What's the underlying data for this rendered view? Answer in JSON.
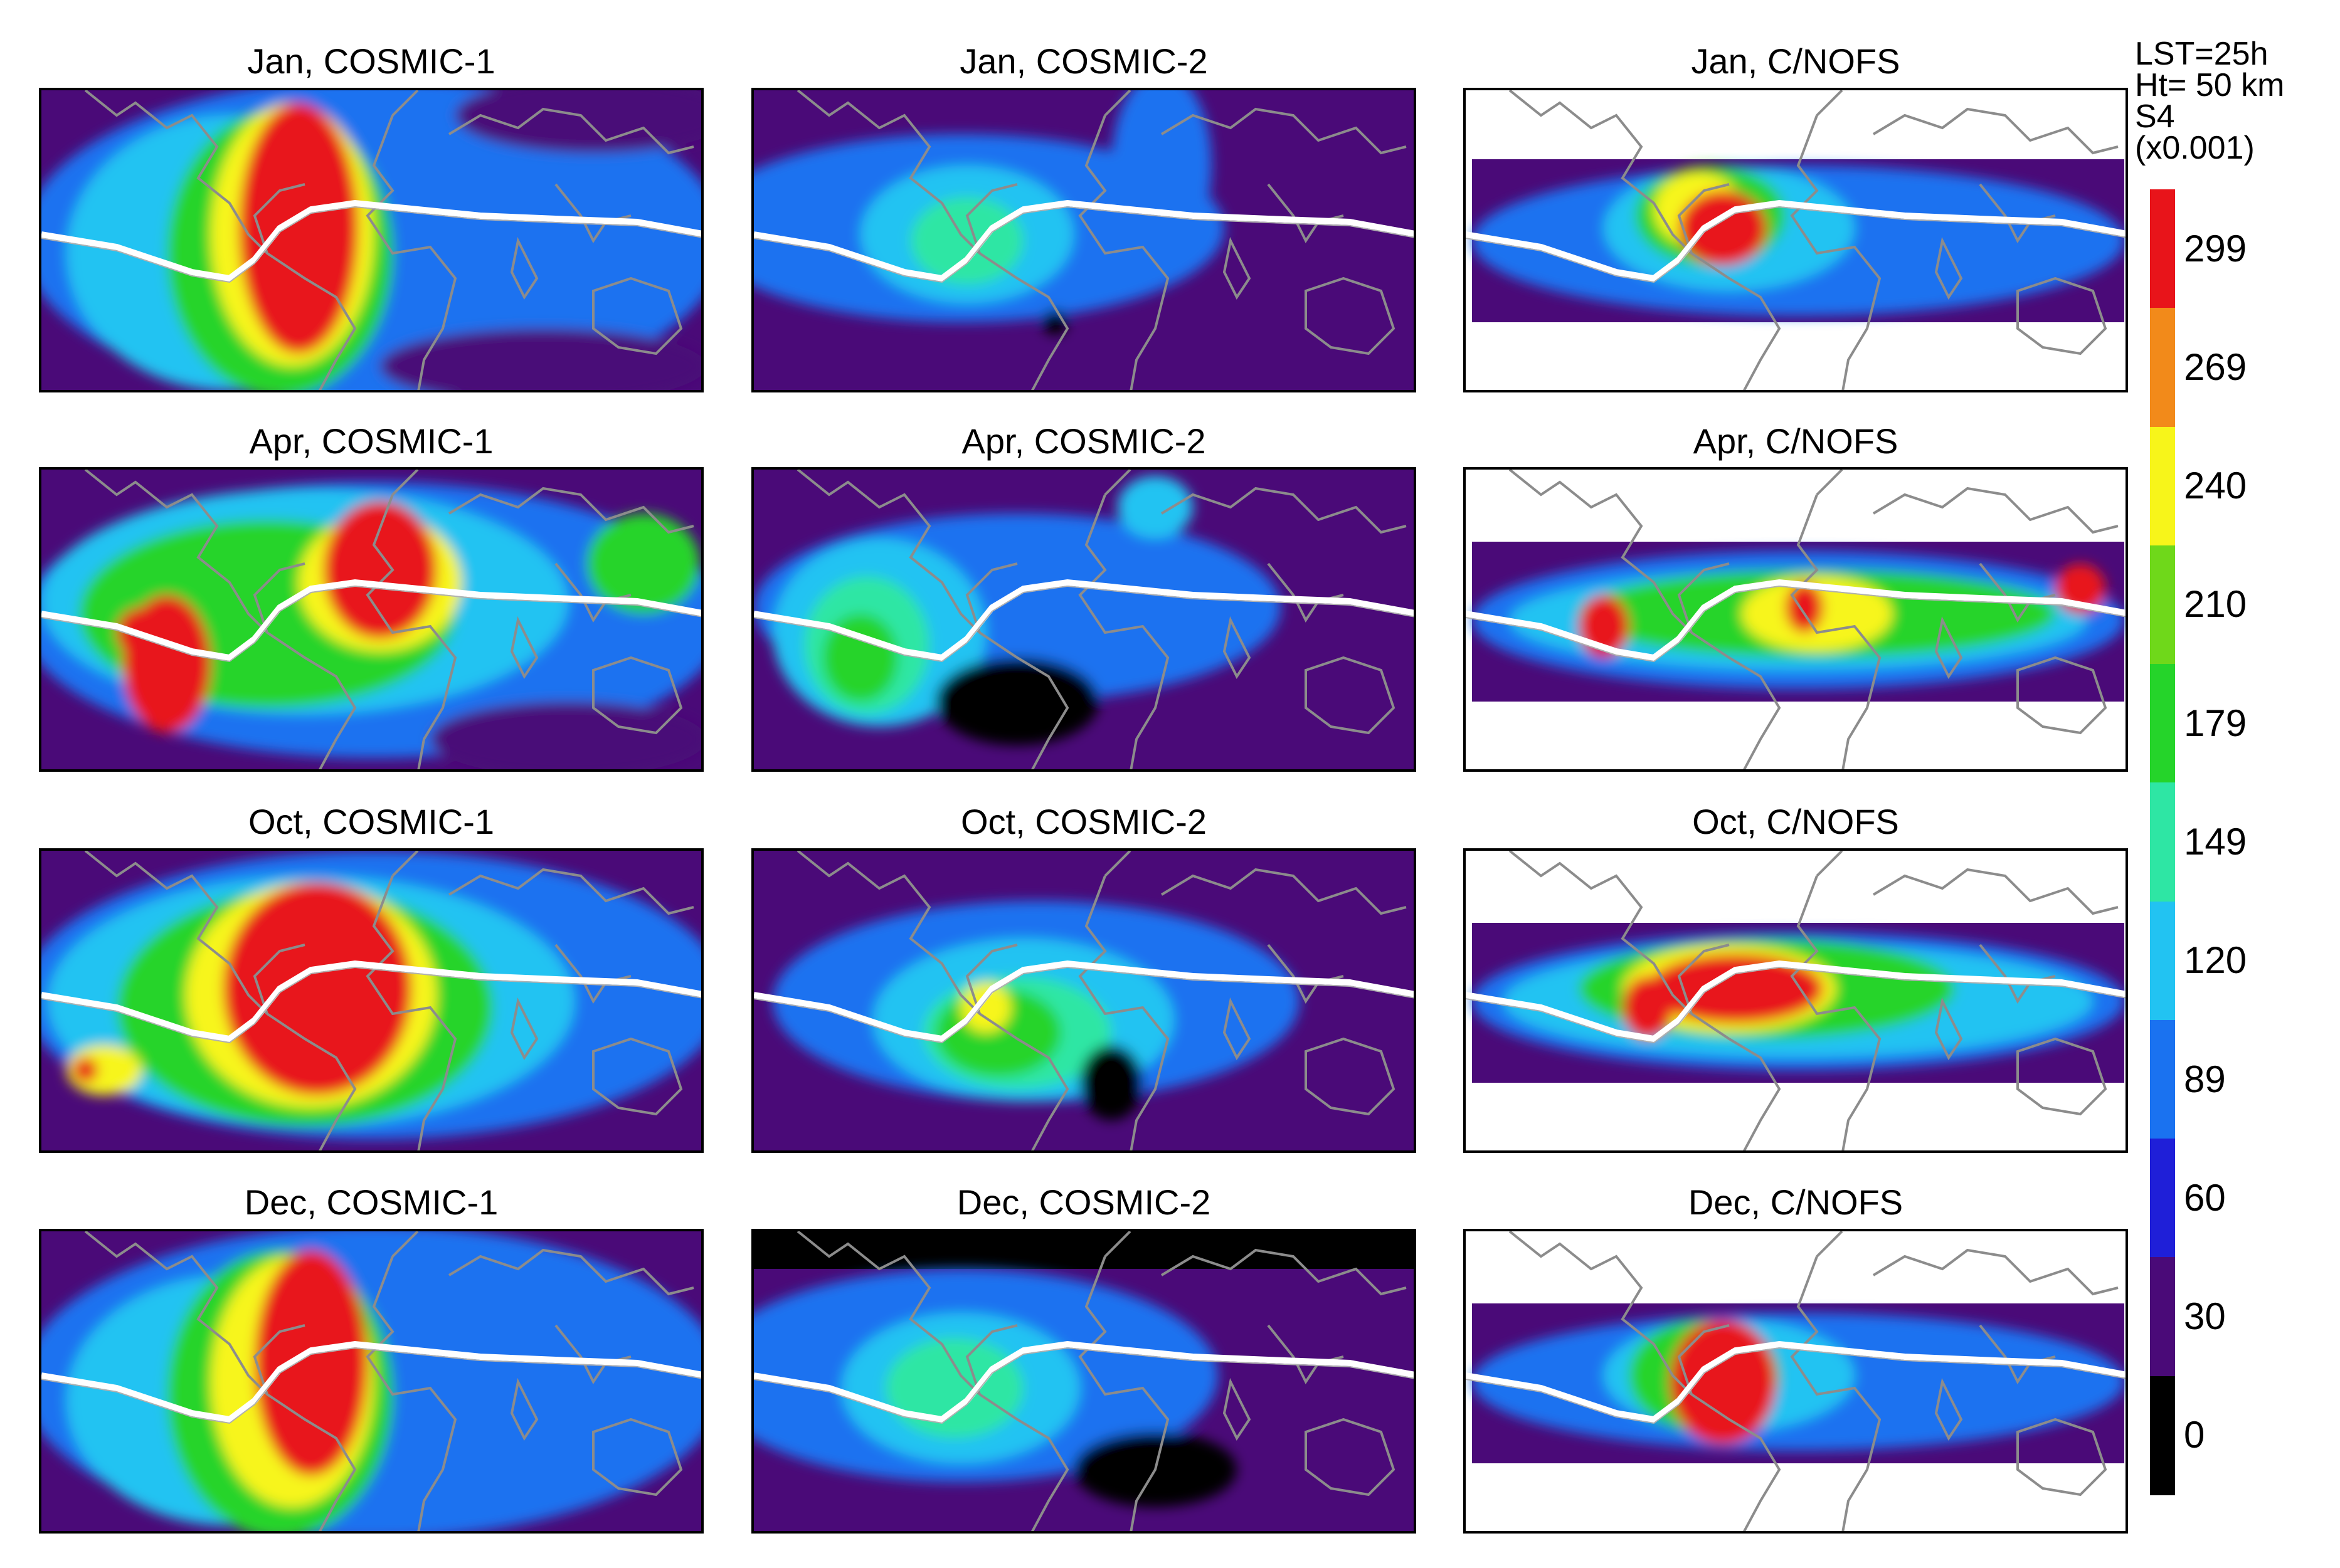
{
  "figure": {
    "rows": [
      "Jan",
      "Apr",
      "Oct",
      "Dec"
    ],
    "columns": [
      "COSMIC-1",
      "COSMIC-2",
      "C/NOFS"
    ],
    "panel_titles": [
      [
        "Jan, COSMIC-1",
        "Jan, COSMIC-2",
        "Jan, C/NOFS"
      ],
      [
        "Apr, COSMIC-1",
        "Apr, COSMIC-2",
        "Apr, C/NOFS"
      ],
      [
        "Oct, COSMIC-1",
        "Oct, COSMIC-2",
        "Oct, C/NOFS"
      ],
      [
        "Dec, COSMIC-1",
        "Dec, COSMIC-2",
        "Dec, C/NOFS"
      ]
    ]
  },
  "colorbar": {
    "header_lines": [
      "LST=25h",
      "Ht= 50 km",
      "S4",
      "(x0.001)"
    ],
    "tick_labels": [
      "299",
      "269",
      "240",
      "210",
      "179",
      "149",
      "120",
      "89",
      "60",
      "30",
      "0"
    ],
    "colors_top_to_bottom": [
      "#e8141a",
      "#f28a1a",
      "#f7f51a",
      "#6fd81a",
      "#25d42a",
      "#2ee6a4",
      "#22c3f2",
      "#1a72f0",
      "#1f1fd8",
      "#4a0a78",
      "#000000"
    ]
  },
  "palette": {
    "deep_purple": "#4a0a78",
    "dark_blue": "#1f1fd8",
    "blue": "#1a72f0",
    "cyan": "#22c3f2",
    "aqua": "#2ee6a4",
    "green": "#25d42a",
    "lime": "#6fd81a",
    "yellow": "#f7f51a",
    "orange": "#f28a1a",
    "red": "#e8141a",
    "black": "#000000",
    "coastline": "#8c8c8c",
    "magnetic_equator": "#ffffff"
  }
}
